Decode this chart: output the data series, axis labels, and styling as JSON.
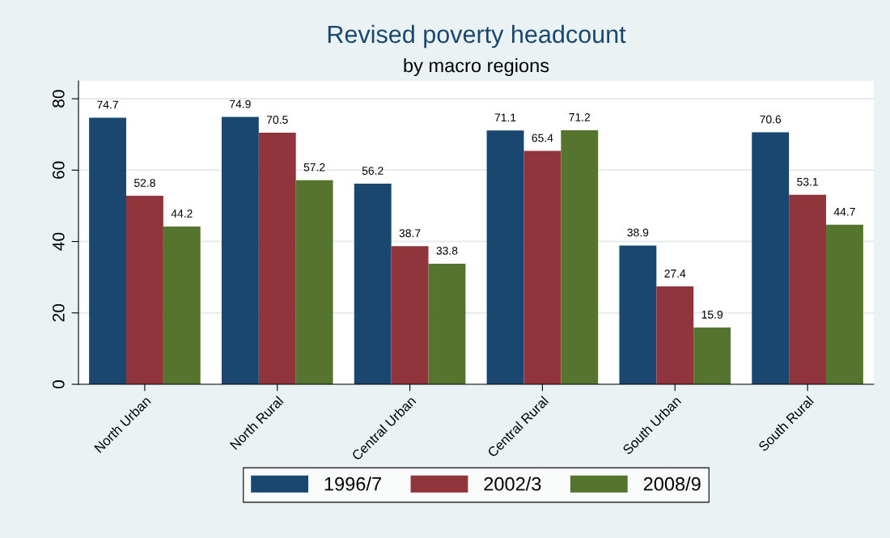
{
  "chart_data": {
    "type": "bar",
    "title": "Revised poverty headcount",
    "subtitle": "by macro regions",
    "categories": [
      "North Urban",
      "North Rural",
      "Central Urban",
      "Central Rural",
      "South Urban",
      "South Rural"
    ],
    "series": [
      {
        "name": "1996/7",
        "color": "#1a476f",
        "values": [
          74.7,
          74.9,
          56.2,
          71.1,
          38.9,
          70.6
        ]
      },
      {
        "name": "2002/3",
        "color": "#90353b",
        "values": [
          52.8,
          70.5,
          38.7,
          65.4,
          27.4,
          53.1
        ]
      },
      {
        "name": "2008/9",
        "color": "#55752f",
        "values": [
          44.2,
          57.2,
          33.8,
          71.2,
          15.9,
          44.7
        ]
      }
    ],
    "ylim": [
      0,
      85
    ],
    "yticks": [
      0,
      20,
      40,
      60,
      80
    ],
    "grid": "y",
    "legend": "bottom",
    "data_labels": true
  }
}
